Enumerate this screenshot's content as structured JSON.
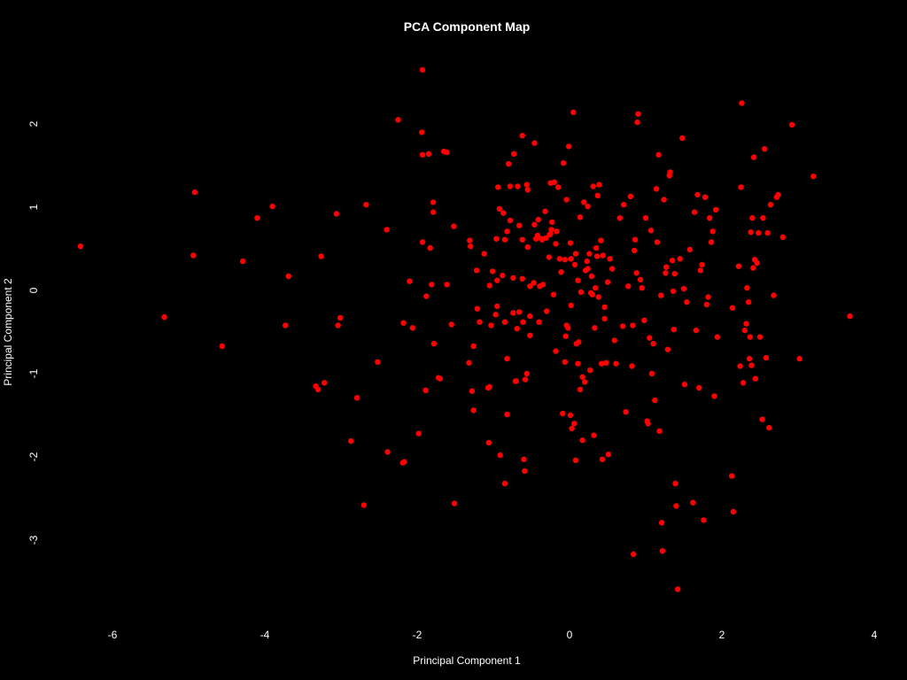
{
  "chart_data": {
    "type": "scatter",
    "title": "PCA Component Map",
    "xlabel": "Principal Component 1",
    "ylabel": "Principal Component 2",
    "xlim": [
      -7,
      4
    ],
    "ylim": [
      -3.9,
      2.9
    ],
    "xticks": [
      "-6",
      "-4",
      "-2",
      "0",
      "2",
      "4"
    ],
    "yticks": [
      "-3",
      "-2",
      "-1",
      "0",
      "1",
      "2"
    ],
    "grid": false,
    "background": "#000000",
    "text_color": "#ffffff",
    "point_color": "#ff0000",
    "points": [
      [
        -6.42,
        0.53
      ],
      [
        -5.32,
        -0.32
      ],
      [
        -4.92,
        1.18
      ],
      [
        -4.94,
        0.42
      ],
      [
        -4.56,
        -0.67
      ],
      [
        -4.29,
        0.35
      ],
      [
        -4.1,
        0.87
      ],
      [
        -3.9,
        1.01
      ],
      [
        -3.69,
        0.17
      ],
      [
        -3.73,
        -0.42
      ],
      [
        -3.26,
        0.41
      ],
      [
        -3.33,
        -1.15
      ],
      [
        -3.3,
        -1.19
      ],
      [
        -3.22,
        -1.11
      ],
      [
        -3.06,
        0.92
      ],
      [
        -3.01,
        -0.33
      ],
      [
        -3.04,
        -0.42
      ],
      [
        -2.87,
        -1.81
      ],
      [
        -2.79,
        -1.29
      ],
      [
        -2.7,
        -2.58
      ],
      [
        -2.67,
        1.03
      ],
      [
        -2.52,
        -0.86
      ],
      [
        -2.4,
        0.73
      ],
      [
        -2.39,
        -1.94
      ],
      [
        -2.25,
        2.05
      ],
      [
        -2.19,
        -2.07
      ],
      [
        -2.17,
        -2.06
      ],
      [
        -2.18,
        -0.39
      ],
      [
        -2.1,
        0.11
      ],
      [
        -2.06,
        -0.45
      ],
      [
        -1.98,
        -1.72
      ],
      [
        -1.93,
        2.65
      ],
      [
        -1.94,
        1.9
      ],
      [
        -1.93,
        1.63
      ],
      [
        -1.93,
        0.58
      ],
      [
        -1.89,
        -1.2
      ],
      [
        -1.88,
        -0.07
      ],
      [
        -1.85,
        1.64
      ],
      [
        -1.83,
        0.51
      ],
      [
        -1.81,
        0.07
      ],
      [
        -1.79,
        0.94
      ],
      [
        -1.79,
        1.06
      ],
      [
        -1.78,
        -0.64
      ],
      [
        -1.72,
        -1.05
      ],
      [
        -1.7,
        -1.06
      ],
      [
        -1.65,
        1.67
      ],
      [
        -1.61,
        1.66
      ],
      [
        -1.61,
        0.07
      ],
      [
        -1.55,
        -0.41
      ],
      [
        -1.52,
        0.77
      ],
      [
        -1.51,
        -2.56
      ],
      [
        -1.32,
        -0.87
      ],
      [
        -1.31,
        0.6
      ],
      [
        -1.3,
        0.53
      ],
      [
        -1.28,
        -1.21
      ],
      [
        -1.26,
        -1.44
      ],
      [
        -1.26,
        -0.67
      ],
      [
        -1.22,
        0.24
      ],
      [
        -1.21,
        -0.22
      ],
      [
        -1.18,
        -0.38
      ],
      [
        -1.12,
        0.44
      ],
      [
        -1.07,
        -1.17
      ],
      [
        -1.06,
        -1.83
      ],
      [
        -1.05,
        -1.16
      ],
      [
        -1.05,
        0.06
      ],
      [
        -1.03,
        -0.42
      ],
      [
        -1.01,
        0.23
      ],
      [
        -0.96,
        0.62
      ],
      [
        -0.97,
        -0.29
      ],
      [
        -0.95,
        -0.19
      ],
      [
        -0.95,
        0.12
      ],
      [
        -0.94,
        1.24
      ],
      [
        -0.92,
        0.98
      ],
      [
        -0.91,
        -1.98
      ],
      [
        -0.88,
        0.18
      ],
      [
        -0.87,
        0.93
      ],
      [
        -0.85,
        -2.32
      ],
      [
        -0.85,
        0.61
      ],
      [
        -0.85,
        -0.38
      ],
      [
        -0.82,
        -0.82
      ],
      [
        -0.82,
        -1.49
      ],
      [
        -0.82,
        0.71
      ],
      [
        -0.8,
        1.52
      ],
      [
        -0.78,
        1.25
      ],
      [
        -0.78,
        0.84
      ],
      [
        -0.74,
        0.15
      ],
      [
        -0.74,
        -0.27
      ],
      [
        -0.73,
        1.64
      ],
      [
        -0.71,
        -1.09
      ],
      [
        -0.7,
        -1.09
      ],
      [
        -0.69,
        -0.46
      ],
      [
        -0.68,
        1.25
      ],
      [
        -0.66,
        0.78
      ],
      [
        -0.66,
        -0.26
      ],
      [
        -0.62,
        1.86
      ],
      [
        -0.62,
        0.61
      ],
      [
        -0.62,
        0.14
      ],
      [
        -0.61,
        -0.38
      ],
      [
        -0.6,
        -2.03
      ],
      [
        -0.59,
        -2.17
      ],
      [
        -0.58,
        -1.07
      ],
      [
        -0.56,
        -1.0
      ],
      [
        -0.56,
        1.27
      ],
      [
        -0.55,
        1.21
      ],
      [
        -0.55,
        0.52
      ],
      [
        -0.52,
        -0.54
      ],
      [
        -0.52,
        0.05
      ],
      [
        -0.52,
        -0.31
      ],
      [
        -0.47,
        0.09
      ],
      [
        -0.46,
        0.79
      ],
      [
        -0.46,
        1.77
      ],
      [
        -0.44,
        0.62
      ],
      [
        -0.42,
        0.66
      ],
      [
        -0.41,
        0.85
      ],
      [
        -0.4,
        -0.38
      ],
      [
        -0.39,
        0.05
      ],
      [
        -0.37,
        0.62
      ],
      [
        -0.36,
        0.61
      ],
      [
        -0.35,
        0.07
      ],
      [
        -0.32,
        0.95
      ],
      [
        -0.31,
        0.63
      ],
      [
        -0.3,
        -0.25
      ],
      [
        -0.27,
        0.4
      ],
      [
        -0.26,
        0.67
      ],
      [
        -0.25,
        0.68
      ],
      [
        -0.25,
        1.29
      ],
      [
        -0.24,
        0.73
      ],
      [
        -0.23,
        0.82
      ],
      [
        -0.21,
        -0.05
      ],
      [
        -0.2,
        1.3
      ],
      [
        -0.18,
        0.56
      ],
      [
        -0.18,
        -0.73
      ],
      [
        -0.17,
        0.71
      ],
      [
        -0.15,
        1.24
      ],
      [
        -0.13,
        0.38
      ],
      [
        -0.11,
        0.22
      ],
      [
        -0.09,
        -1.48
      ],
      [
        -0.08,
        1.53
      ],
      [
        -0.06,
        0.37
      ],
      [
        -0.06,
        -0.86
      ],
      [
        -0.05,
        -0.55
      ],
      [
        -0.04,
        1.09
      ],
      [
        -0.04,
        -0.42
      ],
      [
        -0.02,
        -0.45
      ],
      [
        -0.01,
        1.73
      ],
      [
        0.01,
        -1.5
      ],
      [
        0.01,
        0.57
      ],
      [
        0.02,
        -0.18
      ],
      [
        0.02,
        0.38
      ],
      [
        0.03,
        -1.66
      ],
      [
        0.05,
        2.14
      ],
      [
        0.06,
        -1.6
      ],
      [
        0.07,
        0.31
      ],
      [
        0.08,
        -2.04
      ],
      [
        0.08,
        0.44
      ],
      [
        0.09,
        -0.64
      ],
      [
        0.11,
        -0.88
      ],
      [
        0.11,
        0.12
      ],
      [
        0.12,
        -0.62
      ],
      [
        0.14,
        -1.19
      ],
      [
        0.14,
        0.88
      ],
      [
        0.15,
        -0.02
      ],
      [
        0.17,
        -1.04
      ],
      [
        0.17,
        -1.8
      ],
      [
        0.19,
        1.06
      ],
      [
        0.2,
        -1.1
      ],
      [
        0.21,
        0.24
      ],
      [
        0.23,
        0.35
      ],
      [
        0.24,
        1.01
      ],
      [
        0.24,
        0.26
      ],
      [
        0.26,
        0.44
      ],
      [
        0.27,
        -0.96
      ],
      [
        0.28,
        -0.03
      ],
      [
        0.29,
        0.17
      ],
      [
        0.3,
        -0.05
      ],
      [
        0.31,
        1.25
      ],
      [
        0.32,
        -1.74
      ],
      [
        0.33,
        -0.45
      ],
      [
        0.34,
        0.03
      ],
      [
        0.35,
        0.51
      ],
      [
        0.36,
        0.41
      ],
      [
        0.37,
        1.14
      ],
      [
        0.38,
        -0.08
      ],
      [
        0.39,
        1.27
      ],
      [
        0.41,
        0.6
      ],
      [
        0.42,
        -0.88
      ],
      [
        0.43,
        -2.03
      ],
      [
        0.44,
        0.42
      ],
      [
        0.46,
        -0.2
      ],
      [
        0.46,
        -0.34
      ],
      [
        0.48,
        -0.87
      ],
      [
        0.5,
        0.1
      ],
      [
        0.51,
        -1.97
      ],
      [
        0.53,
        0.38
      ],
      [
        0.56,
        0.26
      ],
      [
        0.59,
        -0.6
      ],
      [
        0.61,
        -0.88
      ],
      [
        0.66,
        0.87
      ],
      [
        0.7,
        -0.43
      ],
      [
        0.71,
        1.03
      ],
      [
        0.74,
        -1.46
      ],
      [
        0.77,
        0.05
      ],
      [
        0.8,
        1.13
      ],
      [
        0.82,
        -0.91
      ],
      [
        0.83,
        -0.42
      ],
      [
        0.84,
        -3.17
      ],
      [
        0.85,
        0.48
      ],
      [
        0.86,
        0.61
      ],
      [
        0.88,
        0.21
      ],
      [
        0.89,
        2.02
      ],
      [
        0.9,
        2.12
      ],
      [
        0.93,
        0.13
      ],
      [
        0.95,
        0.03
      ],
      [
        0.98,
        -0.36
      ],
      [
        1.0,
        0.87
      ],
      [
        1.02,
        -1.57
      ],
      [
        1.03,
        -1.6
      ],
      [
        1.05,
        -0.57
      ],
      [
        1.07,
        0.72
      ],
      [
        1.08,
        -1.0
      ],
      [
        1.1,
        -0.64
      ],
      [
        1.12,
        -1.32
      ],
      [
        1.14,
        1.22
      ],
      [
        1.15,
        0.58
      ],
      [
        1.17,
        1.63
      ],
      [
        1.18,
        -1.69
      ],
      [
        1.2,
        -0.06
      ],
      [
        1.21,
        -2.79
      ],
      [
        1.22,
        -3.13
      ],
      [
        1.24,
        1.09
      ],
      [
        1.26,
        0.21
      ],
      [
        1.27,
        0.28
      ],
      [
        1.29,
        -0.71
      ],
      [
        1.31,
        1.38
      ],
      [
        1.32,
        1.42
      ],
      [
        1.35,
        0.36
      ],
      [
        1.36,
        -0.01
      ],
      [
        1.37,
        -0.47
      ],
      [
        1.38,
        0.2
      ],
      [
        1.39,
        -2.32
      ],
      [
        1.4,
        -2.59
      ],
      [
        1.42,
        -3.59
      ],
      [
        1.45,
        0.38
      ],
      [
        1.48,
        1.83
      ],
      [
        1.5,
        0.02
      ],
      [
        1.51,
        -1.13
      ],
      [
        1.54,
        -0.14
      ],
      [
        1.58,
        0.49
      ],
      [
        1.62,
        -2.55
      ],
      [
        1.64,
        0.94
      ],
      [
        1.66,
        -0.48
      ],
      [
        1.68,
        1.15
      ],
      [
        1.7,
        -1.17
      ],
      [
        1.72,
        0.24
      ],
      [
        1.74,
        0.31
      ],
      [
        1.76,
        -2.76
      ],
      [
        1.78,
        1.12
      ],
      [
        1.8,
        -0.17
      ],
      [
        1.82,
        -0.08
      ],
      [
        1.84,
        0.87
      ],
      [
        1.86,
        0.58
      ],
      [
        1.88,
        0.71
      ],
      [
        1.9,
        -1.27
      ],
      [
        1.92,
        0.97
      ],
      [
        1.94,
        -0.56
      ],
      [
        2.14,
        -0.21
      ],
      [
        2.13,
        -2.23
      ],
      [
        2.15,
        -2.66
      ],
      [
        2.22,
        0.29
      ],
      [
        2.24,
        -0.91
      ],
      [
        2.25,
        1.24
      ],
      [
        2.26,
        2.25
      ],
      [
        2.28,
        -1.11
      ],
      [
        2.3,
        -0.48
      ],
      [
        2.32,
        -0.4
      ],
      [
        2.33,
        0.03
      ],
      [
        2.35,
        -0.14
      ],
      [
        2.36,
        -0.82
      ],
      [
        2.37,
        -0.56
      ],
      [
        2.38,
        0.7
      ],
      [
        2.39,
        -0.9
      ],
      [
        2.4,
        0.87
      ],
      [
        2.41,
        0.27
      ],
      [
        2.42,
        1.6
      ],
      [
        2.43,
        0.37
      ],
      [
        2.44,
        -1.06
      ],
      [
        2.46,
        0.33
      ],
      [
        2.48,
        0.69
      ],
      [
        2.5,
        -0.56
      ],
      [
        2.53,
        -1.55
      ],
      [
        2.54,
        0.87
      ],
      [
        2.56,
        1.7
      ],
      [
        2.58,
        -0.81
      ],
      [
        2.6,
        0.69
      ],
      [
        2.62,
        -1.65
      ],
      [
        2.64,
        1.03
      ],
      [
        2.68,
        -0.06
      ],
      [
        2.72,
        1.12
      ],
      [
        2.74,
        1.15
      ],
      [
        2.8,
        0.64
      ],
      [
        2.92,
        1.99
      ],
      [
        3.02,
        -0.82
      ],
      [
        3.2,
        1.37
      ],
      [
        3.68,
        -0.31
      ]
    ]
  }
}
